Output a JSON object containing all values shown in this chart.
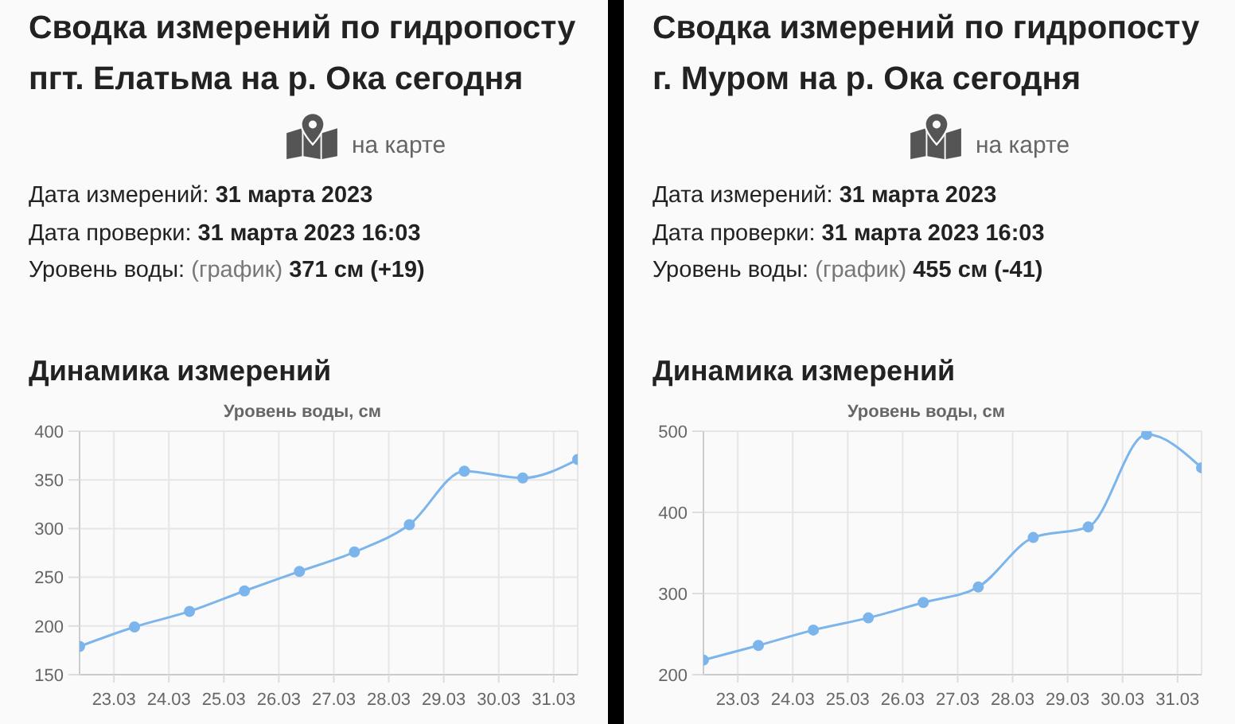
{
  "chart_data": [
    {
      "type": "line",
      "title": "Сводка измерений по гидропосту пгт. Елатьма на р. Ока сегодня",
      "subtitle": "Динамика измерений",
      "ylabel": "Уровень воды, см",
      "annotations": [
        "на карте",
        "Дата измерений: 31 марта 2023",
        "Дата проверки: 31 марта 2023 16:03",
        "Уровень воды: (график) 371 см (+19)"
      ],
      "x": [
        "2023-03-22T09:00",
        "2023-03-23T09:00",
        "2023-03-24T09:00",
        "2023-03-25T09:00",
        "2023-03-26T09:00",
        "2023-03-27T09:00",
        "2023-03-28T09:00",
        "2023-03-29T09:00",
        "2023-03-30T10:30",
        "2023-03-31T10:30"
      ],
      "values": [
        179,
        199,
        215,
        236,
        256,
        276,
        304,
        359,
        352,
        371
      ],
      "color": "#7cb5ec",
      "xlim": [
        "2023-03-22T09:00",
        "2023-03-31T10:30"
      ],
      "xticks": [
        {
          "value": "2023-03-23",
          "label": "23.03"
        },
        {
          "value": "2023-03-24",
          "label": "24.03"
        },
        {
          "value": "2023-03-25",
          "label": "25.03"
        },
        {
          "value": "2023-03-26",
          "label": "26.03"
        },
        {
          "value": "2023-03-27",
          "label": "27.03"
        },
        {
          "value": "2023-03-28",
          "label": "28.03"
        },
        {
          "value": "2023-03-29",
          "label": "29.03"
        },
        {
          "value": "2023-03-30",
          "label": "30.03"
        },
        {
          "value": "2023-03-31",
          "label": "31.03"
        }
      ],
      "ylim": [
        150,
        400
      ],
      "yticks": [
        150,
        200,
        250,
        300,
        350,
        400
      ],
      "grid": true,
      "marker": "circle",
      "line_style": "solid"
    },
    {
      "type": "line",
      "title": "Сводка измерений по гидропосту г. Муром на р. Ока сегодня",
      "subtitle": "Динамика измерений",
      "ylabel": "Уровень воды, см",
      "annotations": [
        "на карте",
        "Дата измерений: 31 марта 2023",
        "Дата проверки: 31 марта 2023 16:03",
        "Уровень воды: (график) 455 см (-41)"
      ],
      "x": [
        "2023-03-22T09:00",
        "2023-03-23T09:00",
        "2023-03-24T09:00",
        "2023-03-25T09:00",
        "2023-03-26T09:00",
        "2023-03-27T09:00",
        "2023-03-28T09:00",
        "2023-03-29T09:00",
        "2023-03-30T10:30",
        "2023-03-31T10:30"
      ],
      "values": [
        218,
        236,
        255,
        270,
        289,
        308,
        369,
        382,
        496,
        455
      ],
      "color": "#7cb5ec",
      "xlim": [
        "2023-03-22T09:00",
        "2023-03-31T10:30"
      ],
      "xticks": [
        {
          "value": "2023-03-23",
          "label": "23.03"
        },
        {
          "value": "2023-03-24",
          "label": "24.03"
        },
        {
          "value": "2023-03-25",
          "label": "25.03"
        },
        {
          "value": "2023-03-26",
          "label": "26.03"
        },
        {
          "value": "2023-03-27",
          "label": "27.03"
        },
        {
          "value": "2023-03-28",
          "label": "28.03"
        },
        {
          "value": "2023-03-29",
          "label": "29.03"
        },
        {
          "value": "2023-03-30",
          "label": "30.03"
        },
        {
          "value": "2023-03-31",
          "label": "31.03"
        }
      ],
      "ylim": [
        200,
        500
      ],
      "yticks": [
        200,
        300,
        400,
        500
      ],
      "grid": true,
      "marker": "circle",
      "line_style": "solid"
    }
  ]
}
